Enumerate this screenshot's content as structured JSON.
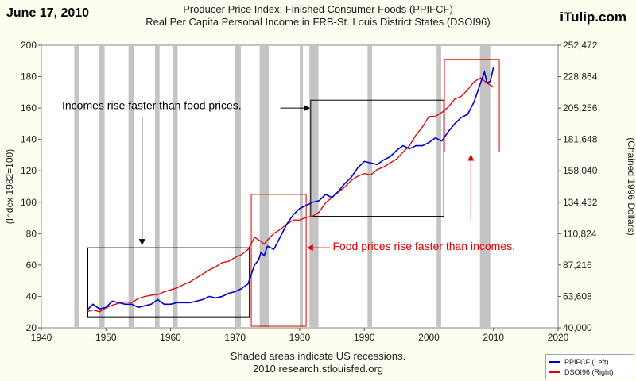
{
  "header": {
    "date": "June 17, 2010",
    "brand": "iTulip.com",
    "title_line1": "Producer Price Index: Finished Consumer Foods (PPIFCF)",
    "title_line2": "Real Per Capita Personal Income in FRB-St. Louis District States (DSOI96)"
  },
  "footer": {
    "line1": "Shaded areas indicate US recessions.",
    "line2": "2010 research.stlouisfed.org"
  },
  "colors": {
    "ppifcf": "#0000cc",
    "dsoi96": "#dd0000",
    "recession": "#c4c4c4",
    "plot_bg": "#ffffff",
    "callout_black": "#000000",
    "callout_red": "#e00000"
  },
  "chart_data": {
    "type": "line",
    "xlabel": "",
    "ylabel": "(Index 1982=100)",
    "y2label": "(Chained 1996 Dollars)",
    "xlim": [
      1940,
      2020
    ],
    "ylim": [
      20,
      200
    ],
    "y2lim": [
      40000,
      252472
    ],
    "x_ticks": [
      1940,
      1950,
      1960,
      1970,
      1980,
      1990,
      2000,
      2010,
      2020
    ],
    "y_ticks": [
      20,
      40,
      60,
      80,
      100,
      120,
      140,
      160,
      180,
      200
    ],
    "y2_ticks": [
      "40,000",
      "63,608",
      "87,216",
      "110,824",
      "134,432",
      "158,040",
      "181,648",
      "205,256",
      "228,864",
      "252,472"
    ],
    "recessions": [
      [
        1945.1,
        1945.8
      ],
      [
        1948.9,
        1949.8
      ],
      [
        1953.5,
        1954.4
      ],
      [
        1957.6,
        1958.3
      ],
      [
        1960.3,
        1961.1
      ],
      [
        1969.9,
        1970.9
      ],
      [
        1973.8,
        1975.2
      ],
      [
        1980.0,
        1980.5
      ],
      [
        1981.5,
        1982.9
      ],
      [
        1990.5,
        1991.2
      ],
      [
        2001.2,
        2001.9
      ],
      [
        2007.9,
        2009.5
      ]
    ],
    "legend": [
      "PPIFCF (Left)",
      "DSOI96 (Right)"
    ],
    "legend_placement": "bottom-right",
    "series": [
      {
        "name": "PPIFCF (Left)",
        "axis": "left",
        "x": [
          1947,
          1948,
          1949,
          1950,
          1951,
          1952,
          1953,
          1954,
          1955,
          1956,
          1957,
          1958,
          1959,
          1960,
          1961,
          1962,
          1963,
          1964,
          1965,
          1966,
          1967,
          1968,
          1969,
          1970,
          1971,
          1972,
          1973,
          1973.6,
          1974,
          1974.5,
          1975,
          1976,
          1977,
          1978,
          1979,
          1980,
          1981,
          1982,
          1983,
          1984,
          1985,
          1986,
          1987,
          1988,
          1989,
          1990,
          1991,
          1992,
          1993,
          1994,
          1995,
          1996,
          1997,
          1998,
          1999,
          2000,
          2001,
          2002,
          2003,
          2004,
          2005,
          2006,
          2007,
          2008,
          2008.6,
          2009,
          2009.5,
          2010
        ],
        "values": [
          31,
          35,
          32,
          33,
          37,
          36,
          35,
          35,
          33,
          34,
          35,
          38,
          35,
          35,
          36,
          36,
          36,
          37,
          38,
          40,
          39,
          40,
          42,
          43,
          45,
          48,
          60,
          63,
          68,
          66,
          72,
          70,
          78,
          86,
          92,
          96,
          98,
          100,
          101,
          105,
          103,
          107,
          112,
          116,
          122,
          126,
          125,
          124,
          127,
          129,
          133,
          136,
          134,
          136,
          136,
          138,
          141,
          139,
          145,
          150,
          154,
          156,
          164,
          176,
          183,
          176,
          177,
          186
        ]
      },
      {
        "name": "DSOI96 (Right)",
        "axis": "right",
        "x": [
          1947,
          1948,
          1949,
          1950,
          1951,
          1952,
          1953,
          1954,
          1955,
          1956,
          1957,
          1958,
          1959,
          1960,
          1961,
          1962,
          1963,
          1964,
          1965,
          1966,
          1967,
          1968,
          1969,
          1970,
          1971,
          1972,
          1973,
          1974,
          1974.5,
          1975,
          1976,
          1977,
          1978,
          1979,
          1980,
          1981,
          1982,
          1983,
          1984,
          1985,
          1986,
          1987,
          1988,
          1989,
          1990,
          1991,
          1992,
          1993,
          1994,
          1995,
          1996,
          1997,
          1998,
          1999,
          2000,
          2001,
          2002,
          2003,
          2004,
          2005,
          2006,
          2007,
          2008,
          2009,
          2010
        ],
        "values": [
          52000,
          53500,
          52000,
          55000,
          57000,
          58500,
          59500,
          59000,
          62000,
          63500,
          64500,
          65000,
          67000,
          68500,
          70000,
          72500,
          74500,
          77500,
          80500,
          83500,
          86000,
          89000,
          90000,
          93000,
          95000,
          99000,
          108000,
          105000,
          103000,
          106000,
          111000,
          114000,
          118000,
          121000,
          121000,
          123000,
          124000,
          127000,
          134000,
          138000,
          142000,
          146000,
          151000,
          154000,
          156000,
          155000,
          159000,
          161000,
          164000,
          167000,
          172000,
          177000,
          185000,
          191000,
          199000,
          199000,
          202000,
          206000,
          212000,
          214000,
          219000,
          225000,
          228000,
          224000,
          221000
        ]
      }
    ],
    "annotations": [
      {
        "text": "Incomes rise faster than food prices.",
        "color": "black"
      },
      {
        "text": "Food prices rise faster than incomes.",
        "color": "red"
      }
    ]
  }
}
